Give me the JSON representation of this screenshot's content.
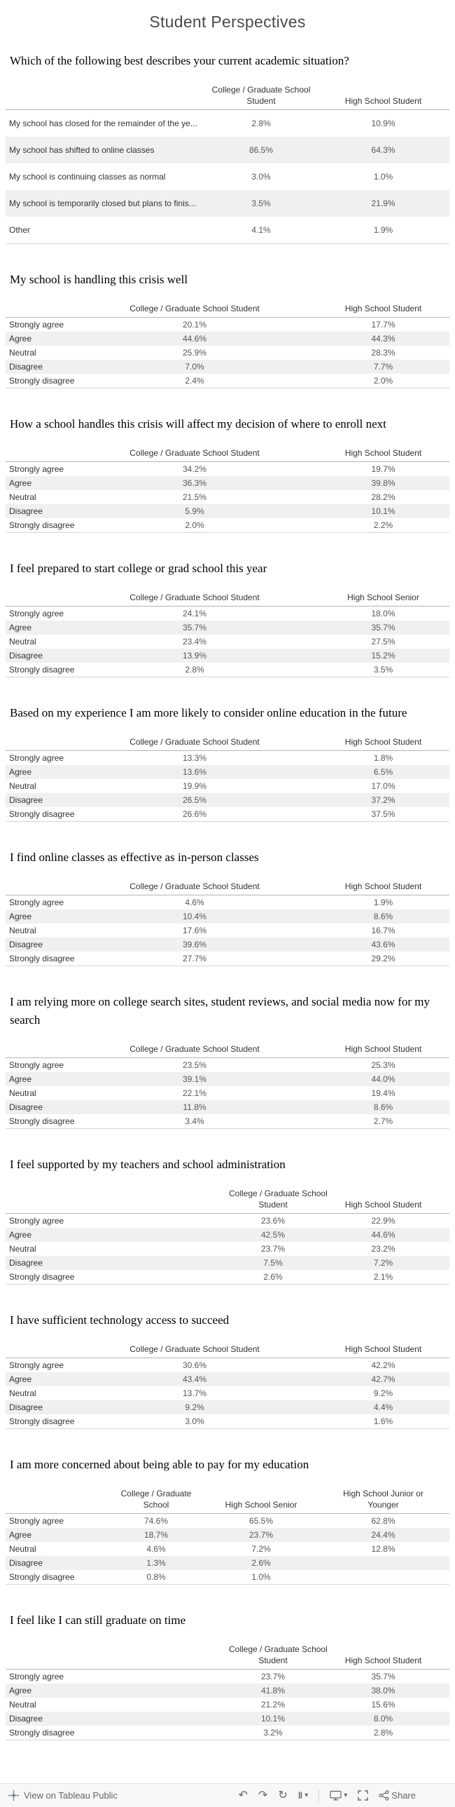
{
  "page_title": "Student Perspectives",
  "colors": {
    "band": "#f0f0f0",
    "header_line": "#b5b5b5",
    "table_bottom_line": "#d6d6d6",
    "label_text": "#333333",
    "value_text": "#575757",
    "footer_bg": "#f7f7f7",
    "footer_text": "#666666"
  },
  "chart_data": [
    {
      "type": "table",
      "layout": "wide",
      "title": "Which of the following best describes your current academic situation?",
      "columns": [
        "College / Graduate School\nStudent",
        "High School Student"
      ],
      "rows": [
        {
          "label": "My school has closed for the remainder of the ye...",
          "values": [
            "2.8%",
            "10.9%"
          ]
        },
        {
          "label": "My school has shifted to online classes",
          "values": [
            "86.5%",
            "64.3%"
          ]
        },
        {
          "label": "My school is continuing classes as normal",
          "values": [
            "3.0%",
            "1.0%"
          ]
        },
        {
          "label": "My school is temporarily closed but plans to finis...",
          "values": [
            "3.5%",
            "21.9%"
          ]
        },
        {
          "label": "Other",
          "values": [
            "4.1%",
            "1.9%"
          ]
        }
      ]
    },
    {
      "type": "table",
      "layout": "standard",
      "title": "My school is handling this crisis well",
      "columns": [
        "College / Graduate School Student",
        "High School Student"
      ],
      "rows": [
        {
          "label": "Strongly agree",
          "values": [
            "20.1%",
            "17.7%"
          ]
        },
        {
          "label": "Agree",
          "values": [
            "44.6%",
            "44.3%"
          ]
        },
        {
          "label": "Neutral",
          "values": [
            "25.9%",
            "28.3%"
          ]
        },
        {
          "label": "Disagree",
          "values": [
            "7.0%",
            "7.7%"
          ]
        },
        {
          "label": "Strongly disagree",
          "values": [
            "2.4%",
            "2.0%"
          ]
        }
      ]
    },
    {
      "type": "table",
      "layout": "standard",
      "title": "How a school handles this crisis will affect my decision of where to enroll next",
      "columns": [
        "College / Graduate School Student",
        "High School Student"
      ],
      "rows": [
        {
          "label": "Strongly agree",
          "values": [
            "34.2%",
            "19.7%"
          ]
        },
        {
          "label": "Agree",
          "values": [
            "36.3%",
            "39.8%"
          ]
        },
        {
          "label": "Neutral",
          "values": [
            "21.5%",
            "28.2%"
          ]
        },
        {
          "label": "Disagree",
          "values": [
            "5.9%",
            "10.1%"
          ]
        },
        {
          "label": "Strongly disagree",
          "values": [
            "2.0%",
            "2.2%"
          ]
        }
      ]
    },
    {
      "type": "table",
      "layout": "standard",
      "title": "I feel prepared to start college or grad school this year",
      "columns": [
        "College / Graduate School Student",
        "High School Senior"
      ],
      "rows": [
        {
          "label": "Strongly agree",
          "values": [
            "24.1%",
            "18.0%"
          ]
        },
        {
          "label": "Agree",
          "values": [
            "35.7%",
            "35.7%"
          ]
        },
        {
          "label": "Neutral",
          "values": [
            "23.4%",
            "27.5%"
          ]
        },
        {
          "label": "Disagree",
          "values": [
            "13.9%",
            "15.2%"
          ]
        },
        {
          "label": "Strongly disagree",
          "values": [
            "2.8%",
            "3.5%"
          ]
        }
      ]
    },
    {
      "type": "table",
      "layout": "standard",
      "title": "Based on my experience I am more likely to consider online education in the future",
      "columns": [
        "College / Graduate School Student",
        "High School Student"
      ],
      "rows": [
        {
          "label": "Strongly agree",
          "values": [
            "13.3%",
            "1.8%"
          ]
        },
        {
          "label": "Agree",
          "values": [
            "13.6%",
            "6.5%"
          ]
        },
        {
          "label": "Neutral",
          "values": [
            "19.9%",
            "17.0%"
          ]
        },
        {
          "label": "Disagree",
          "values": [
            "26.5%",
            "37.2%"
          ]
        },
        {
          "label": "Strongly disagree",
          "values": [
            "26.6%",
            "37.5%"
          ]
        }
      ]
    },
    {
      "type": "table",
      "layout": "standard",
      "title": "I find online classes as effective as in-person classes",
      "columns": [
        "College / Graduate School Student",
        "High School Student"
      ],
      "rows": [
        {
          "label": "Strongly agree",
          "values": [
            "4.6%",
            "1.9%"
          ]
        },
        {
          "label": "Agree",
          "values": [
            "10.4%",
            "8.6%"
          ]
        },
        {
          "label": "Neutral",
          "values": [
            "17.6%",
            "16.7%"
          ]
        },
        {
          "label": "Disagree",
          "values": [
            "39.6%",
            "43.6%"
          ]
        },
        {
          "label": "Strongly disagree",
          "values": [
            "27.7%",
            "29.2%"
          ]
        }
      ]
    },
    {
      "type": "table",
      "layout": "standard",
      "title": "I am relying more on college search sites, student reviews, and social media now for my search",
      "columns": [
        "College / Graduate School Student",
        "High School Student"
      ],
      "rows": [
        {
          "label": "Strongly agree",
          "values": [
            "23.5%",
            "25.3%"
          ]
        },
        {
          "label": "Agree",
          "values": [
            "39.1%",
            "44.0%"
          ]
        },
        {
          "label": "Neutral",
          "values": [
            "22.1%",
            "19.4%"
          ]
        },
        {
          "label": "Disagree",
          "values": [
            "11.8%",
            "8.6%"
          ]
        },
        {
          "label": "Strongly disagree",
          "values": [
            "3.4%",
            "2.7%"
          ]
        }
      ]
    },
    {
      "type": "table",
      "layout": "shifted",
      "title": "I feel supported by my teachers and school administration",
      "columns": [
        "College / Graduate School\nStudent",
        "High School Student"
      ],
      "rows": [
        {
          "label": "Strongly agree",
          "values": [
            "23.6%",
            "22.9%"
          ]
        },
        {
          "label": "Agree",
          "values": [
            "42.5%",
            "44.6%"
          ]
        },
        {
          "label": "Neutral",
          "values": [
            "23.7%",
            "23.2%"
          ]
        },
        {
          "label": "Disagree",
          "values": [
            "7.5%",
            "7.2%"
          ]
        },
        {
          "label": "Strongly disagree",
          "values": [
            "2.6%",
            "2.1%"
          ]
        }
      ]
    },
    {
      "type": "table",
      "layout": "standard",
      "title": "I have sufficient technology access to succeed",
      "columns": [
        "College / Graduate School Student",
        "High School Student"
      ],
      "rows": [
        {
          "label": "Strongly agree",
          "values": [
            "30.6%",
            "42.2%"
          ]
        },
        {
          "label": "Agree",
          "values": [
            "43.4%",
            "42.7%"
          ]
        },
        {
          "label": "Neutral",
          "values": [
            "13.7%",
            "9.2%"
          ]
        },
        {
          "label": "Disagree",
          "values": [
            "9.2%",
            "4.4%"
          ]
        },
        {
          "label": "Strongly disagree",
          "values": [
            "3.0%",
            "1.6%"
          ]
        }
      ]
    },
    {
      "type": "table",
      "layout": "three",
      "title": "I am more concerned about being able to pay for my education",
      "columns": [
        "College / Graduate\nSchool",
        "High School Senior",
        "High School Junior or\nYounger"
      ],
      "rows": [
        {
          "label": "Strongly agree",
          "values": [
            "74.6%",
            "65.5%",
            "62.8%"
          ]
        },
        {
          "label": "Agree",
          "values": [
            "18.7%",
            "23.7%",
            "24.4%"
          ]
        },
        {
          "label": "Neutral",
          "values": [
            "4.6%",
            "7.2%",
            "12.8%"
          ]
        },
        {
          "label": "Disagree",
          "values": [
            "1.3%",
            "2.6%",
            ""
          ]
        },
        {
          "label": "Strongly disagree",
          "values": [
            "0.8%",
            "1.0%",
            ""
          ]
        }
      ]
    },
    {
      "type": "table",
      "layout": "shifted",
      "title": "I feel like I can still graduate on time",
      "columns": [
        "College / Graduate School\nStudent",
        "High School Student"
      ],
      "rows": [
        {
          "label": "Strongly agree",
          "values": [
            "23.7%",
            "35.7%"
          ]
        },
        {
          "label": "Agree",
          "values": [
            "41.8%",
            "38.0%"
          ]
        },
        {
          "label": "Neutral",
          "values": [
            "21.2%",
            "15.6%"
          ]
        },
        {
          "label": "Disagree",
          "values": [
            "10.1%",
            "8.0%"
          ]
        },
        {
          "label": "Strongly disagree",
          "values": [
            "3.2%",
            "2.8%"
          ]
        }
      ]
    }
  ],
  "footer": {
    "brand_label": "View on Tableau Public",
    "share_label": "Share",
    "icons": {
      "undo": "↶",
      "redo": "↷",
      "replay": "↻",
      "pause": "‖",
      "caret": "▾"
    }
  }
}
